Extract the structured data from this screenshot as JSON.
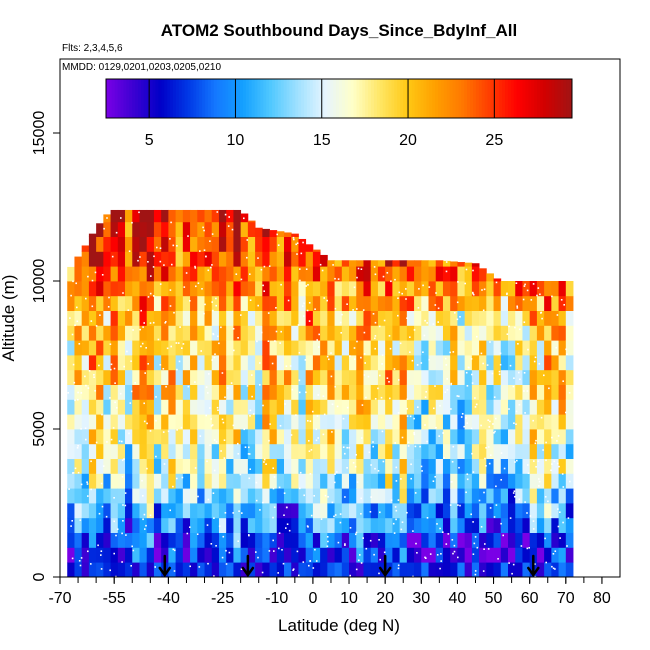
{
  "chart_data": {
    "type": "heatmap",
    "title": "ATOM2 Southbound Days_Since_BdyInf_All",
    "subtitle": "Flts: 2,3,4,5,6",
    "annotation": "MMDD: 0129,0201,0203,0205,0210",
    "xlabel": "Latitude (deg N)",
    "ylabel": "Altitude (m)",
    "xlim": [
      -70,
      85
    ],
    "ylim": [
      0,
      17500
    ],
    "xticks": [
      -70,
      -55,
      -40,
      -25,
      -10,
      0,
      10,
      20,
      30,
      40,
      50,
      60,
      70,
      80
    ],
    "yticks": [
      0,
      5000,
      10000,
      15000
    ],
    "xminor_step": 5,
    "colorbar": {
      "range": [
        2.5,
        29.5
      ],
      "ticks": [
        5,
        10,
        15,
        20,
        25
      ],
      "colors": [
        "#7a00e6",
        "#3c00d2",
        "#0000c8",
        "#0038e6",
        "#1478ff",
        "#14a0ff",
        "#50c8ff",
        "#a0e1ff",
        "#e6f5ff",
        "#ffffc8",
        "#ffe664",
        "#ffc814",
        "#ffa000",
        "#ff7800",
        "#ff3c00",
        "#ff0000",
        "#d20000",
        "#a01414"
      ]
    },
    "arrows_latitude": [
      -41,
      -18,
      20,
      61
    ],
    "altitude_top_by_lat": [
      [
        -68,
        10300
      ],
      [
        -64,
        11000
      ],
      [
        -60,
        11800
      ],
      [
        -56,
        12400
      ],
      [
        -44,
        12400
      ],
      [
        -20,
        12400
      ],
      [
        -15,
        11800
      ],
      [
        -5,
        11600
      ],
      [
        5,
        10700
      ],
      [
        25,
        10700
      ],
      [
        35,
        10700
      ],
      [
        45,
        10600
      ],
      [
        52,
        10000
      ],
      [
        57,
        10000
      ],
      [
        70,
        10000
      ]
    ],
    "altitude_trend": [
      [
        0,
        5.5
      ],
      [
        1000,
        7
      ],
      [
        2000,
        11
      ],
      [
        3000,
        14
      ],
      [
        4000,
        16
      ],
      [
        5000,
        17
      ],
      [
        6000,
        18
      ],
      [
        7000,
        19
      ],
      [
        8000,
        19.5
      ],
      [
        9000,
        21
      ],
      [
        10000,
        23
      ],
      [
        11000,
        24.5
      ],
      [
        12000,
        26
      ]
    ]
  }
}
